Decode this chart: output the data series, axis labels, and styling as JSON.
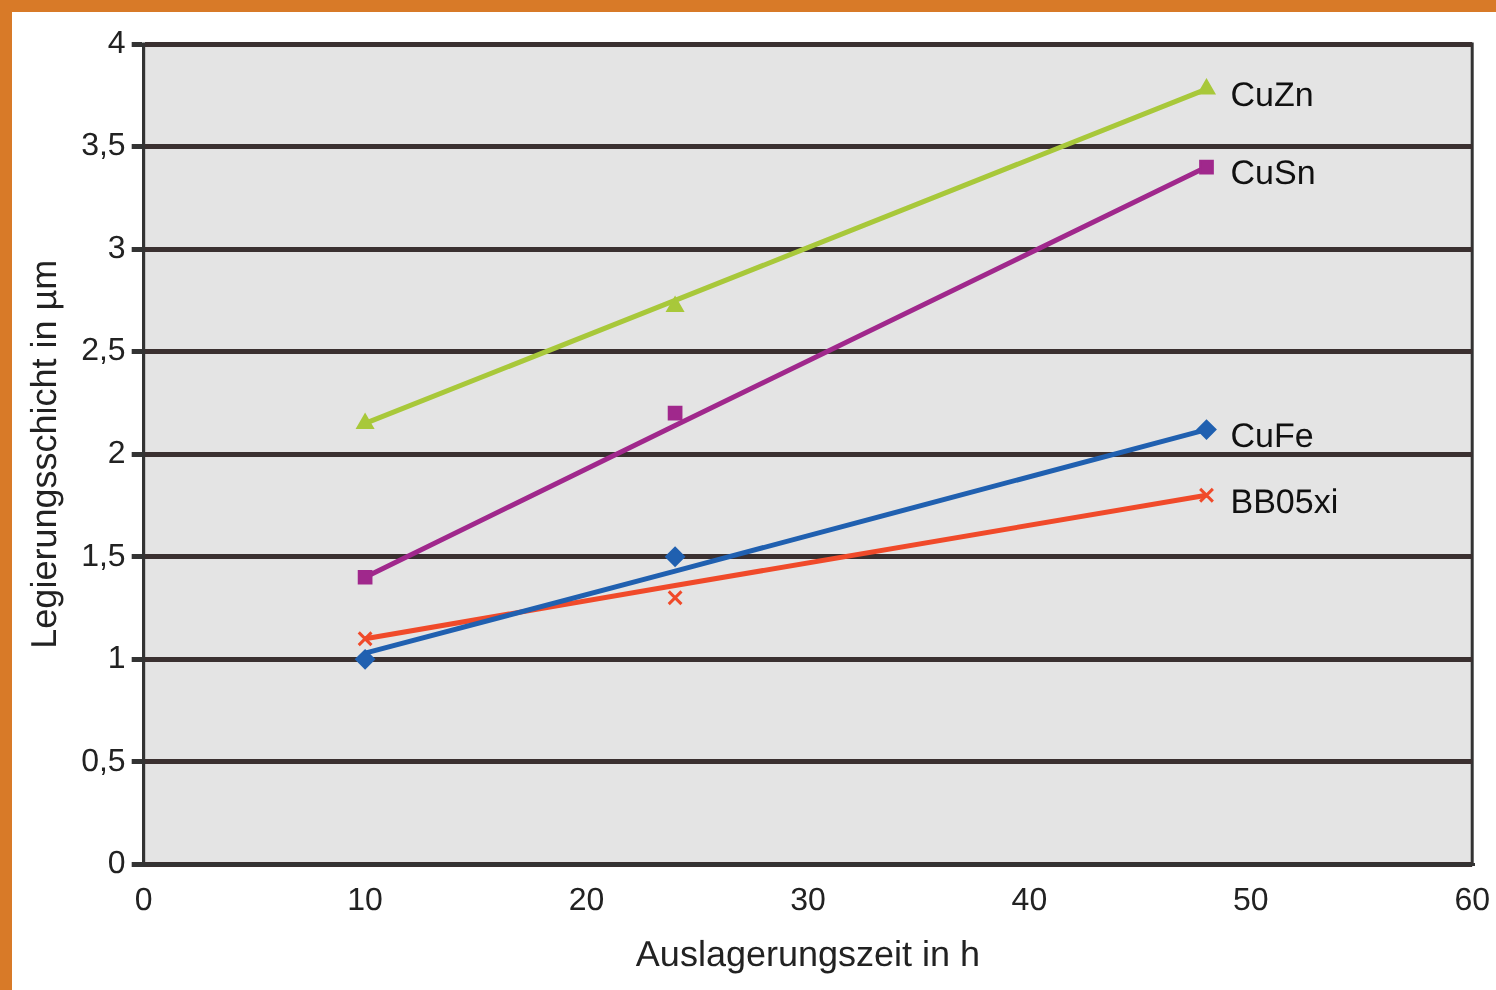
{
  "chart_data": {
    "type": "scatter",
    "xlabel": "Auslagerungszeit in h",
    "ylabel": "Legierungsschicht in µm",
    "x": [
      10,
      24,
      48
    ],
    "series": [
      {
        "name": "CuZn",
        "color": "#a8c83a",
        "marker": "triangle",
        "values": [
          2.15,
          2.72,
          3.78
        ]
      },
      {
        "name": "CuSn",
        "color": "#a0288c",
        "marker": "square",
        "values": [
          1.4,
          2.2,
          3.4
        ]
      },
      {
        "name": "CuFe",
        "color": "#2060b0",
        "marker": "diamond",
        "values": [
          1.0,
          1.5,
          2.12
        ]
      },
      {
        "name": "BB05xi",
        "color": "#f04a2a",
        "marker": "cross",
        "values": [
          1.1,
          1.3,
          1.8
        ]
      },
      {
        "type": "line",
        "color": "#a8c83a",
        "marker": "none",
        "values": [
          2.15,
          2.75,
          3.78
        ]
      },
      {
        "type": "line",
        "color": "#a0288c",
        "marker": "none",
        "values": [
          1.4,
          2.14,
          3.4
        ]
      },
      {
        "type": "line",
        "color": "#2060b0",
        "marker": "none",
        "values": [
          1.03,
          1.43,
          2.12
        ]
      },
      {
        "type": "line",
        "color": "#f04a2a",
        "marker": "none",
        "values": [
          1.1,
          1.36,
          1.8
        ]
      }
    ],
    "xlim": [
      0,
      60
    ],
    "xticks": [
      0,
      10,
      20,
      30,
      40,
      50,
      60
    ],
    "ylim": [
      0,
      4
    ],
    "yticks": [
      0,
      {
        "value": 0.5,
        "label": "0,5"
      },
      1,
      {
        "value": 1.5,
        "label": "1,5"
      },
      2,
      {
        "value": 2.5,
        "label": "2,5"
      },
      3,
      {
        "value": 3.5,
        "label": "3,5"
      },
      4
    ],
    "grid": "y",
    "legend": false
  }
}
